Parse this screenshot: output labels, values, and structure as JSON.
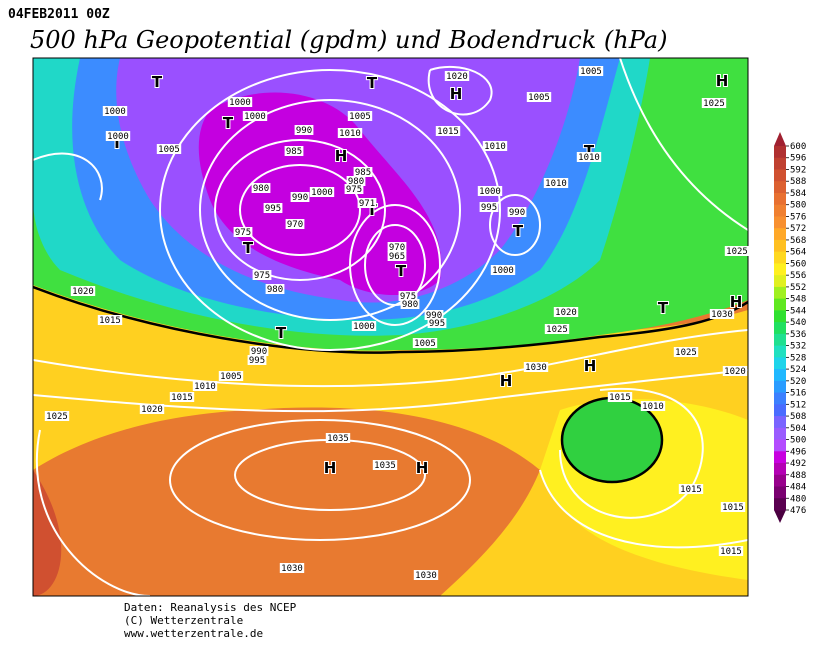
{
  "header": {
    "run": "04FEB2011 00Z",
    "title": "500 hPa Geopotential (gpdm) und Bodendruck (hPa)"
  },
  "map": {
    "systems": [
      "T",
      "T",
      "H",
      "H",
      "T",
      "T",
      "H",
      "T",
      "T",
      "T",
      "T",
      "T",
      "T",
      "T",
      "H",
      "H",
      "H",
      "H",
      "H"
    ],
    "isobar_labels": [
      "1000",
      "1000",
      "1000",
      "1000",
      "1005",
      "990",
      "985",
      "1010",
      "1005",
      "1020",
      "1015",
      "1010",
      "1010",
      "1005",
      "1005",
      "1010",
      "1000",
      "995",
      "990",
      "1000",
      "985",
      "980",
      "975",
      "1000",
      "990",
      "980",
      "995",
      "970",
      "975",
      "975",
      "980",
      "971",
      "970",
      "965",
      "975",
      "980",
      "990",
      "995",
      "1000",
      "1005",
      "1020",
      "1015",
      "990",
      "995",
      "1005",
      "1010",
      "1015",
      "1020",
      "1025",
      "1035",
      "1035",
      "1030",
      "1030",
      "1030",
      "1020",
      "1025",
      "1015",
      "1010",
      "1025",
      "1020",
      "1015",
      "1015",
      "1015",
      "1025",
      "1030",
      "1025"
    ]
  },
  "colorbar": {
    "ticks": [
      600,
      596,
      592,
      588,
      584,
      580,
      576,
      572,
      568,
      564,
      560,
      556,
      552,
      548,
      544,
      540,
      536,
      532,
      528,
      524,
      520,
      516,
      512,
      508,
      504,
      500,
      496,
      492,
      488,
      484,
      480,
      476
    ],
    "colors": [
      "#b03030",
      "#c04030",
      "#d05030",
      "#dc6030",
      "#e87030",
      "#f08030",
      "#f89030",
      "#ffa828",
      "#ffc020",
      "#ffd820",
      "#fff020",
      "#e0f020",
      "#a0f020",
      "#60e820",
      "#30e030",
      "#20e060",
      "#20e090",
      "#20e0c0",
      "#1ed4ea",
      "#20b8ff",
      "#2a9cff",
      "#3c80ff",
      "#4a6cff",
      "#7a64ff",
      "#9a5cff",
      "#b44cff",
      "#c800e0",
      "#b400b4",
      "#98008c",
      "#7a0070",
      "#5a0050"
    ]
  },
  "footer": {
    "lines": [
      "Daten: Reanalysis des NCEP",
      "(C) Wetterzentrale",
      "www.wetterzentrale.de"
    ]
  }
}
